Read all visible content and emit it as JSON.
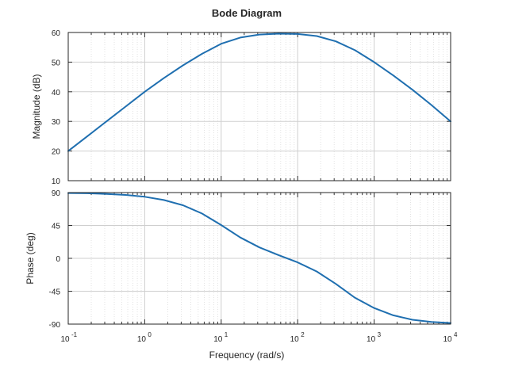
{
  "chart_data": {
    "type": "line",
    "title": "Bode Diagram",
    "xlabel": "Frequency  (rad/s)",
    "x_scale": "log",
    "xlim": [
      0.1,
      10000
    ],
    "x_tick_values": [
      0.1,
      1,
      10,
      100,
      1000,
      10000
    ],
    "x_tick_labels": [
      {
        "base": "10",
        "exp": "-1"
      },
      {
        "base": "10",
        "exp": "0"
      },
      {
        "base": "10",
        "exp": "1"
      },
      {
        "base": "10",
        "exp": "2"
      },
      {
        "base": "10",
        "exp": "3"
      },
      {
        "base": "10",
        "exp": "4"
      }
    ],
    "grid": true,
    "line_color": "#1f6fb0",
    "panels": [
      {
        "ylabel": "Magnitude (dB)",
        "ylim": [
          10,
          60
        ],
        "yticks": [
          10,
          20,
          30,
          40,
          50,
          60
        ],
        "x": [
          0.1,
          0.178,
          0.316,
          0.562,
          1,
          1.78,
          3.16,
          5.62,
          10,
          17.8,
          31.6,
          56.2,
          100,
          178,
          316,
          562,
          1000,
          1780,
          3160,
          5620,
          10000
        ],
        "y": [
          20,
          25,
          30,
          35,
          40,
          44.6,
          48.9,
          52.8,
          56.2,
          58.3,
          59.3,
          59.6,
          59.5,
          58.8,
          57.0,
          54.0,
          50.0,
          45.5,
          40.7,
          35.5,
          30.0
        ]
      },
      {
        "ylabel": "Phase (deg)",
        "ylim": [
          -90,
          90
        ],
        "yticks": [
          -90,
          -45,
          0,
          45,
          90
        ],
        "x": [
          0.1,
          0.178,
          0.316,
          0.562,
          1,
          1.78,
          3.16,
          5.62,
          10,
          17.8,
          31.6,
          56.2,
          100,
          178,
          316,
          562,
          1000,
          1780,
          3160,
          5620,
          10000
        ],
        "y": [
          89.4,
          89.0,
          88.2,
          86.8,
          84.3,
          79.8,
          72.6,
          61.3,
          45.5,
          28.5,
          15.0,
          4.5,
          -5.5,
          -18.0,
          -35.0,
          -54.0,
          -68.0,
          -78.0,
          -84.0,
          -87.0,
          -88.5
        ]
      }
    ]
  }
}
